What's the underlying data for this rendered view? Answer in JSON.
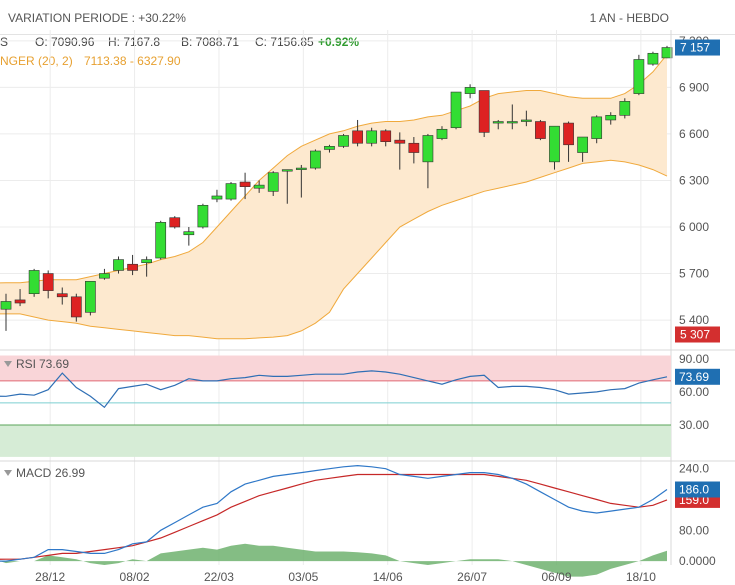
{
  "header": {
    "variation": "VARIATION PERIODE : +30.22%",
    "period": "1 AN - HEBDO"
  },
  "legend": {
    "symbol_fragment": "S",
    "open": "O: 7090.96",
    "high": "H: 7167.8",
    "low": "B: 7088.71",
    "close_label": "C: 7156.85",
    "change": "+0.92%",
    "bollinger": "NGER (20, 2)",
    "bollinger_values": "7113.38 - 6327.90"
  },
  "colors": {
    "up": "#33dd33",
    "down": "#dd2222",
    "band_fill": "#fde9cf",
    "band_line": "#f0a93c",
    "rsi_line": "#2f6fb5",
    "macd_line": "#2f78c8",
    "signal_line": "#c62828",
    "histogram": "#5aa55a",
    "badge_blue": "#1f6fb2",
    "badge_red": "#d32f2f",
    "change_green": "#2e9a2e"
  },
  "chart_data": [
    {
      "type": "candlestick",
      "name": "price",
      "x_ticks": [
        "28/12",
        "08/02",
        "22/03",
        "03/05",
        "14/06",
        "26/07",
        "06/09",
        "18/10"
      ],
      "y_ticks": [
        "7 200",
        "6 900",
        "6 600",
        "6 300",
        "6 000",
        "5 700",
        "5 400"
      ],
      "ylim": [
        5220,
        7270
      ],
      "last_price_label": "7 157",
      "band_low_label": "5 307",
      "candles": [
        {
          "o": 5470,
          "h": 5570,
          "l": 5330,
          "c": 5520
        },
        {
          "o": 5530,
          "h": 5600,
          "l": 5490,
          "c": 5510
        },
        {
          "o": 5570,
          "h": 5730,
          "l": 5550,
          "c": 5720
        },
        {
          "o": 5700,
          "h": 5720,
          "l": 5540,
          "c": 5590
        },
        {
          "o": 5570,
          "h": 5610,
          "l": 5500,
          "c": 5550
        },
        {
          "o": 5550,
          "h": 5570,
          "l": 5390,
          "c": 5420
        },
        {
          "o": 5450,
          "h": 5650,
          "l": 5430,
          "c": 5650
        },
        {
          "o": 5670,
          "h": 5730,
          "l": 5660,
          "c": 5700
        },
        {
          "o": 5720,
          "h": 5810,
          "l": 5700,
          "c": 5790
        },
        {
          "o": 5760,
          "h": 5820,
          "l": 5690,
          "c": 5720
        },
        {
          "o": 5770,
          "h": 5810,
          "l": 5680,
          "c": 5790
        },
        {
          "o": 5800,
          "h": 6040,
          "l": 5790,
          "c": 6030
        },
        {
          "o": 6060,
          "h": 6070,
          "l": 5990,
          "c": 6000
        },
        {
          "o": 5950,
          "h": 6000,
          "l": 5880,
          "c": 5970
        },
        {
          "o": 6000,
          "h": 6150,
          "l": 5990,
          "c": 6140
        },
        {
          "o": 6180,
          "h": 6240,
          "l": 6160,
          "c": 6200
        },
        {
          "o": 6180,
          "h": 6290,
          "l": 6170,
          "c": 6280
        },
        {
          "o": 6290,
          "h": 6350,
          "l": 6180,
          "c": 6260
        },
        {
          "o": 6250,
          "h": 6300,
          "l": 6220,
          "c": 6270
        },
        {
          "o": 6230,
          "h": 6360,
          "l": 6200,
          "c": 6350
        },
        {
          "o": 6360,
          "h": 6370,
          "l": 6150,
          "c": 6370
        },
        {
          "o": 6370,
          "h": 6400,
          "l": 6190,
          "c": 6380
        },
        {
          "o": 6380,
          "h": 6500,
          "l": 6370,
          "c": 6490
        },
        {
          "o": 6500,
          "h": 6530,
          "l": 6480,
          "c": 6520
        },
        {
          "o": 6520,
          "h": 6600,
          "l": 6510,
          "c": 6590
        },
        {
          "o": 6620,
          "h": 6690,
          "l": 6520,
          "c": 6540
        },
        {
          "o": 6540,
          "h": 6640,
          "l": 6520,
          "c": 6620
        },
        {
          "o": 6620,
          "h": 6630,
          "l": 6520,
          "c": 6550
        },
        {
          "o": 6560,
          "h": 6610,
          "l": 6370,
          "c": 6540
        },
        {
          "o": 6540,
          "h": 6580,
          "l": 6410,
          "c": 6480
        },
        {
          "o": 6420,
          "h": 6600,
          "l": 6250,
          "c": 6590
        },
        {
          "o": 6570,
          "h": 6650,
          "l": 6560,
          "c": 6630
        },
        {
          "o": 6640,
          "h": 6870,
          "l": 6630,
          "c": 6870
        },
        {
          "o": 6860,
          "h": 6920,
          "l": 6830,
          "c": 6900
        },
        {
          "o": 6880,
          "h": 6880,
          "l": 6580,
          "c": 6610
        },
        {
          "o": 6670,
          "h": 6690,
          "l": 6630,
          "c": 6680
        },
        {
          "o": 6680,
          "h": 6790,
          "l": 6630,
          "c": 6680
        },
        {
          "o": 6680,
          "h": 6750,
          "l": 6650,
          "c": 6690
        },
        {
          "o": 6680,
          "h": 6690,
          "l": 6560,
          "c": 6570
        },
        {
          "o": 6420,
          "h": 6650,
          "l": 6370,
          "c": 6650
        },
        {
          "o": 6670,
          "h": 6680,
          "l": 6420,
          "c": 6530
        },
        {
          "o": 6480,
          "h": 6580,
          "l": 6420,
          "c": 6580
        },
        {
          "o": 6570,
          "h": 6720,
          "l": 6540,
          "c": 6710
        },
        {
          "o": 6690,
          "h": 6740,
          "l": 6660,
          "c": 6720
        },
        {
          "o": 6720,
          "h": 6830,
          "l": 6700,
          "c": 6810
        },
        {
          "o": 6860,
          "h": 7110,
          "l": 6850,
          "c": 7080
        },
        {
          "o": 7050,
          "h": 7130,
          "l": 7040,
          "c": 7120
        },
        {
          "o": 7090,
          "h": 7168,
          "l": 7089,
          "c": 7157
        }
      ],
      "band_upper": [
        5640,
        5640,
        5650,
        5660,
        5660,
        5660,
        5680,
        5700,
        5720,
        5740,
        5760,
        5790,
        5810,
        5840,
        5900,
        6000,
        6100,
        6200,
        6300,
        6380,
        6460,
        6520,
        6560,
        6600,
        6620,
        6650,
        6670,
        6680,
        6680,
        6690,
        6710,
        6720,
        6750,
        6780,
        6830,
        6860,
        6870,
        6880,
        6880,
        6860,
        6840,
        6830,
        6830,
        6830,
        6860,
        6920,
        7000,
        7113
      ],
      "band_lower": [
        5440,
        5440,
        5420,
        5400,
        5390,
        5380,
        5360,
        5350,
        5340,
        5330,
        5320,
        5310,
        5300,
        5300,
        5290,
        5280,
        5280,
        5280,
        5285,
        5290,
        5300,
        5330,
        5380,
        5450,
        5600,
        5700,
        5800,
        5900,
        6000,
        6050,
        6100,
        6140,
        6170,
        6200,
        6230,
        6250,
        6270,
        6290,
        6320,
        6350,
        6380,
        6410,
        6420,
        6430,
        6420,
        6400,
        6370,
        6328
      ]
    },
    {
      "type": "line",
      "name": "rsi",
      "label": "RSI",
      "value_label": "73.69",
      "y_ticks": [
        "90.00",
        "60.00",
        "30.00"
      ],
      "ylim": [
        0,
        98
      ],
      "overbought": 70,
      "oversold": 30,
      "values": [
        56,
        58,
        57,
        62,
        77,
        64,
        56,
        46,
        63,
        65,
        67,
        62,
        66,
        72,
        70,
        70,
        72,
        73,
        75,
        74,
        74,
        75,
        76,
        76,
        76,
        78,
        79,
        78,
        76,
        73,
        70,
        67,
        71,
        74,
        75,
        64,
        65,
        65,
        64,
        62,
        58,
        59,
        60,
        62,
        63,
        68,
        71,
        73.69
      ]
    },
    {
      "type": "line",
      "name": "macd",
      "label": "MACD",
      "value_label": "26.99",
      "macd_badge": "186.0",
      "signal_badge": "159.0",
      "y_ticks": [
        "240.0",
        "80.00",
        "0.0000"
      ],
      "ylim": [
        -10,
        260
      ],
      "macd": [
        0,
        5,
        10,
        30,
        30,
        25,
        20,
        20,
        30,
        45,
        50,
        80,
        100,
        120,
        140,
        150,
        180,
        200,
        210,
        220,
        225,
        230,
        235,
        240,
        245,
        248,
        245,
        240,
        225,
        220,
        215,
        220,
        225,
        230,
        230,
        225,
        215,
        200,
        180,
        160,
        140,
        130,
        125,
        130,
        135,
        140,
        160,
        186
      ],
      "signal": [
        5,
        5,
        10,
        15,
        20,
        20,
        25,
        30,
        35,
        40,
        50,
        60,
        75,
        90,
        105,
        120,
        140,
        155,
        170,
        180,
        190,
        200,
        210,
        215,
        220,
        225,
        225,
        225,
        225,
        225,
        225,
        225,
        225,
        225,
        225,
        220,
        215,
        210,
        200,
        190,
        180,
        170,
        160,
        150,
        145,
        140,
        145,
        159
      ],
      "histogram": [
        -5,
        0,
        0,
        15,
        10,
        5,
        -5,
        -10,
        -5,
        5,
        0,
        20,
        25,
        30,
        35,
        30,
        40,
        45,
        40,
        40,
        35,
        30,
        25,
        25,
        25,
        23,
        20,
        15,
        0,
        -5,
        -10,
        -5,
        0,
        5,
        5,
        5,
        0,
        -10,
        -20,
        -30,
        -40,
        -40,
        -35,
        -20,
        -10,
        0,
        15,
        27
      ]
    }
  ]
}
